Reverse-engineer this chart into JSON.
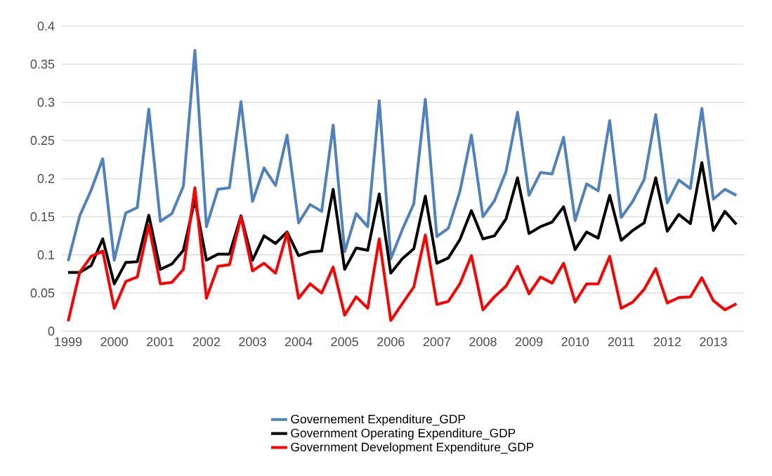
{
  "chart_data": {
    "type": "line",
    "categories": [
      "1999",
      null,
      null,
      null,
      "2000",
      null,
      null,
      null,
      "2001",
      null,
      null,
      null,
      "2002",
      null,
      null,
      null,
      "2003",
      null,
      null,
      null,
      "2004",
      null,
      null,
      null,
      "2005",
      null,
      null,
      null,
      "2006",
      null,
      null,
      null,
      "2007",
      null,
      null,
      null,
      "2008",
      null,
      null,
      null,
      "2009",
      null,
      null,
      null,
      "2010",
      null,
      null,
      null,
      "2011",
      null,
      null,
      null,
      "2012",
      null,
      null,
      null,
      "2013",
      null,
      null
    ],
    "series": [
      {
        "name": "Governement Expenditure_GDP",
        "color": "#4f81bd",
        "values": [
          0.092,
          0.151,
          0.185,
          0.226,
          0.093,
          0.155,
          0.162,
          0.291,
          0.144,
          0.154,
          0.19,
          0.368,
          0.137,
          0.186,
          0.188,
          0.301,
          0.17,
          0.214,
          0.191,
          0.257,
          0.142,
          0.166,
          0.157,
          0.27,
          0.104,
          0.154,
          0.137,
          0.302,
          0.095,
          0.133,
          0.167,
          0.304,
          0.124,
          0.135,
          0.183,
          0.257,
          0.15,
          0.171,
          0.209,
          0.287,
          0.178,
          0.208,
          0.206,
          0.254,
          0.145,
          0.193,
          0.184,
          0.276,
          0.149,
          0.17,
          0.199,
          0.284,
          0.168,
          0.198,
          0.187,
          0.292,
          0.173,
          0.186,
          0.178
        ]
      },
      {
        "name": "Government Operating Expenditure_GDP",
        "color": "#000000",
        "values": [
          0.077,
          0.077,
          0.086,
          0.121,
          0.062,
          0.09,
          0.091,
          0.152,
          0.081,
          0.088,
          0.106,
          0.172,
          0.093,
          0.101,
          0.101,
          0.151,
          0.093,
          0.125,
          0.115,
          0.13,
          0.099,
          0.104,
          0.105,
          0.186,
          0.081,
          0.109,
          0.106,
          0.18,
          0.076,
          0.095,
          0.108,
          0.177,
          0.089,
          0.096,
          0.12,
          0.158,
          0.121,
          0.125,
          0.147,
          0.201,
          0.128,
          0.137,
          0.143,
          0.163,
          0.107,
          0.13,
          0.122,
          0.178,
          0.119,
          0.132,
          0.142,
          0.201,
          0.131,
          0.153,
          0.141,
          0.221,
          0.132,
          0.157,
          0.14
        ]
      },
      {
        "name": "Government Development Expenditure_GDP",
        "color": "#ff0000",
        "values": [
          0.013,
          0.077,
          0.098,
          0.105,
          0.03,
          0.065,
          0.071,
          0.139,
          0.062,
          0.064,
          0.081,
          0.188,
          0.043,
          0.085,
          0.087,
          0.15,
          0.079,
          0.089,
          0.076,
          0.129,
          0.043,
          0.062,
          0.05,
          0.084,
          0.021,
          0.045,
          0.03,
          0.121,
          0.014,
          0.036,
          0.058,
          0.126,
          0.035,
          0.039,
          0.062,
          0.099,
          0.028,
          0.045,
          0.059,
          0.085,
          0.049,
          0.071,
          0.063,
          0.089,
          0.038,
          0.062,
          0.062,
          0.098,
          0.03,
          0.038,
          0.055,
          0.082,
          0.037,
          0.044,
          0.045,
          0.07,
          0.04,
          0.028,
          0.036
        ]
      }
    ],
    "ylim": [
      0,
      0.4
    ],
    "yticks": [
      0,
      0.05,
      0.1,
      0.15,
      0.2,
      0.25,
      0.3,
      0.35,
      0.4
    ],
    "grid": "y",
    "legend": "bottom",
    "marker": "none",
    "line_style": "solid"
  }
}
